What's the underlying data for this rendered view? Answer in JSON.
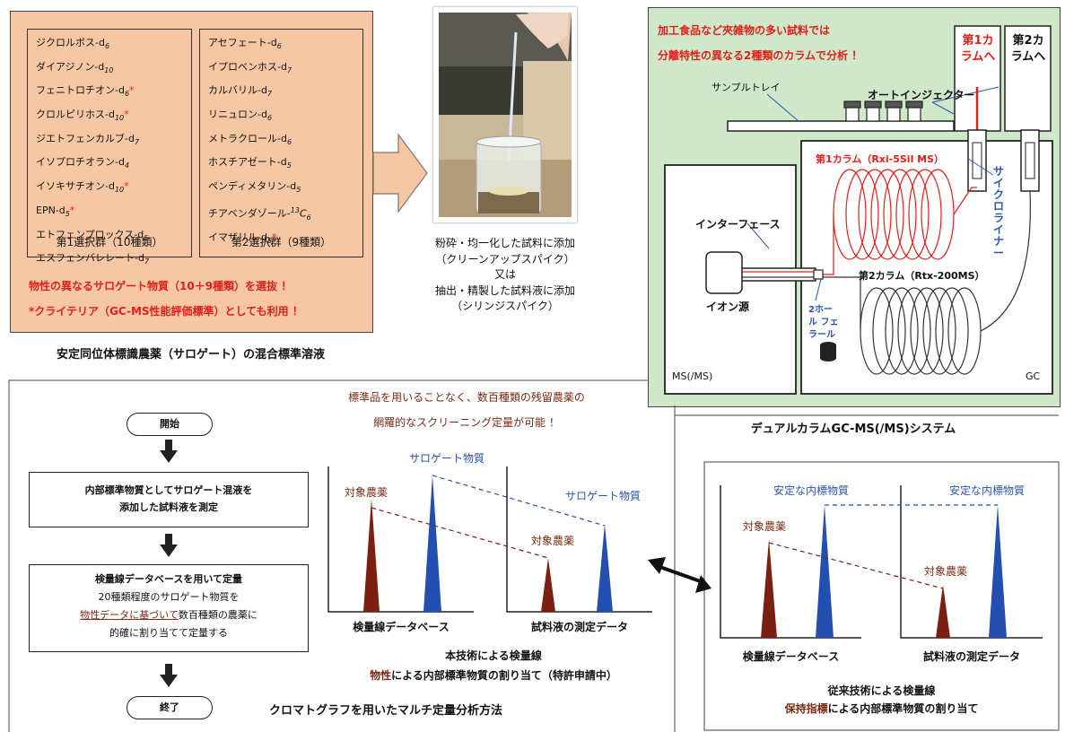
{
  "mix_panel": {
    "group1_items": [
      {
        "name": "ジクロルボス",
        "sub": "6",
        "star": false
      },
      {
        "name": "ダイアジノン",
        "sub": "10",
        "star": false
      },
      {
        "name": "フェニトロチオン",
        "sub": "6",
        "star": true
      },
      {
        "name": "クロルピリホス",
        "sub": "10",
        "star": true
      },
      {
        "name": "ジエトフェンカルブ",
        "sub": "7",
        "star": false
      },
      {
        "name": "イソプロチオラン",
        "sub": "4",
        "star": false
      },
      {
        "name": "イソキサチオン",
        "sub": "10",
        "star": true
      },
      {
        "name": "EPN",
        "sub": "5",
        "star": true
      },
      {
        "name": "エトフェンプロックス",
        "sub": "5",
        "star": false
      },
      {
        "name": "エスフェンバレレート",
        "sub": "7",
        "star": false
      }
    ],
    "group1_label": "第1選択群（10種類）",
    "group2_items": [
      {
        "name": "アセフェート",
        "sub": "6",
        "star": false
      },
      {
        "name": "イプロベンホス",
        "sub": "7",
        "star": false
      },
      {
        "name": "カルバリル",
        "sub": "7",
        "star": false
      },
      {
        "name": "リニュロン",
        "sub": "6",
        "star": false
      },
      {
        "name": "メトラクロール",
        "sub": "6",
        "star": false
      },
      {
        "name": "ホスチアゼート",
        "sub": "5",
        "star": false
      },
      {
        "name": "ペンディメタリン",
        "sub": "5",
        "star": false
      },
      {
        "name": "チアベンダゾール",
        "sub13c": "13",
        "subc": "6",
        "star": false
      },
      {
        "name": "イマザリル",
        "sub": "5",
        "star": true
      }
    ],
    "group2_label": "第2選択群（9種類）",
    "note1": "物性の異なるサロゲート物質（10＋9種類）を選抜 ！",
    "note2": "*クライテリア（GC-MS性能評価標準）としても利用 ！",
    "caption": "安定同位体標識農薬（サロゲート）の混合標準溶液"
  },
  "photo_text": {
    "line1": "粉砕・均一化した試料に添加",
    "line2": "（クリーンアップスパイク）",
    "line3": "又は",
    "line4": "抽出・精製した試料液に添加",
    "line5": "（シリンジスパイク）"
  },
  "gcms_panel": {
    "headline1": "加工食品など夾雑物の多い試料では",
    "headline2": "分離特性の異なる2種類のカラムで分析 ！",
    "column1_box": "第1カラムへ",
    "column2_box": "第2カラムへ",
    "autoinjector": "オートインジェクター",
    "sample_tray": "サンプルトレイ",
    "column1_label": "第1カラム（Rxi-5Sil MS）",
    "cyclo_liner": "サイクロライナー",
    "interface": "インターフェース",
    "ion_source": "イオン源",
    "column2_label": "第2カラム（Rtx-200MS）",
    "ferrule": "2ホール フェラール",
    "ms_label": "MS(/MS)",
    "gc_label": "GC",
    "caption": "デュアルカラムGC-MS(/MS)システム"
  },
  "flow": {
    "start": "開始",
    "step1_line1": "内部標準物質としてサロゲート混液を",
    "step1_line2": "添加した試料液を測定",
    "step2_title": "検量線データベースを用いて定量",
    "step2_line1": "20種類程度のサロゲート物質を",
    "step2_underlined": "物性データに基づいて",
    "step2_line2_rest": "数百種類の農薬に",
    "step2_line3": "的確に割り当てて定量する",
    "end": "終了",
    "caption": "クロマトグラフを用いたマルチ定量分析方法"
  },
  "new_method": {
    "headline1": "標準品を用いることなく、数百種類の残留農薬の",
    "headline2": "網羅的なスクリーニング定量が可能 ！",
    "surrogate1": "サロゲート物質",
    "surrogate2": "サロゲート物質",
    "target1": "対象農薬",
    "target2": "対象農薬",
    "axis1": "検量線データベース",
    "axis2": "試料液の測定データ",
    "caption1": "本技術による検量線",
    "caption2_emph": "物性",
    "caption2_rest": "による内部標準物質の割り当て（特許申請中）"
  },
  "old_method": {
    "is1": "安定な内標物質",
    "is2": "安定な内標物質",
    "target1": "対象農薬",
    "target2": "対象農薬",
    "axis1": "検量線データベース",
    "axis2": "試料液の測定データ",
    "caption1": "従来技術による検量線",
    "caption2_emph": "保持指標",
    "caption2_rest": "による内部標準物質の割り当て"
  },
  "colors": {
    "salmon": "#f7c7a4",
    "green": "#cfe8c9",
    "brown_peak": "#7a1f12",
    "blue_peak": "#2350b0",
    "red_text": "#e0201a",
    "brown_text": "#7a2a14",
    "blue_text": "#2a55b0"
  }
}
